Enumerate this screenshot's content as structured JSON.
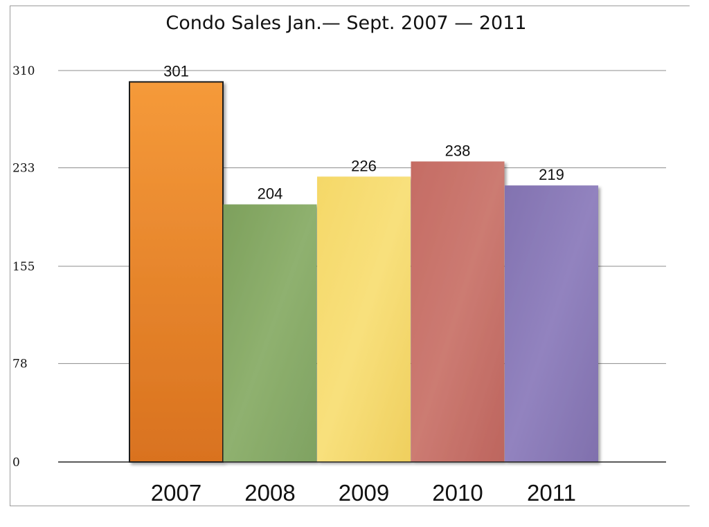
{
  "chart_data": {
    "type": "bar",
    "title": "Condo Sales Jan.— Sept. 2007 — 2011",
    "xlabel": "",
    "ylabel": "",
    "categories": [
      "2007",
      "2008",
      "2009",
      "2010",
      "2011"
    ],
    "values": [
      301,
      204,
      226,
      238,
      219
    ],
    "data_labels": [
      "301",
      "204",
      "226",
      "238",
      "219"
    ],
    "yticks": [
      0,
      78,
      155,
      233,
      310
    ],
    "ylim": [
      0,
      310
    ],
    "grid": true,
    "legend": "none",
    "colors": [
      "#ef8a2a",
      "#85a865",
      "#f3d56a",
      "#c5726a",
      "#8a7ab4"
    ]
  }
}
